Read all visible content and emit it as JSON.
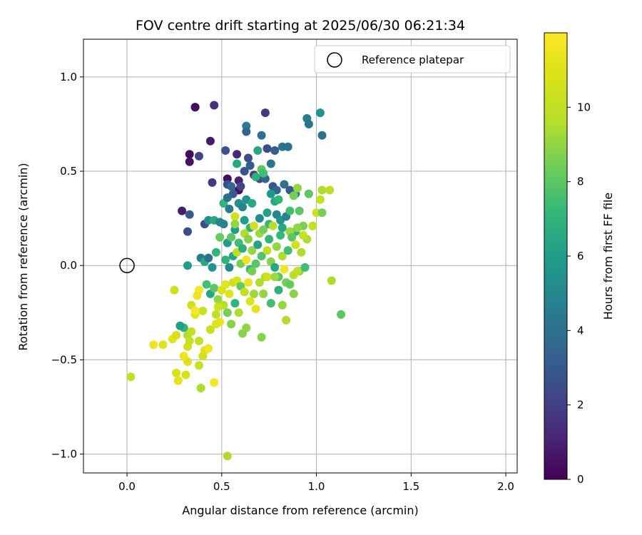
{
  "chart_data": {
    "type": "scatter",
    "title": "FOV centre drift starting at 2025/06/30 06:21:34",
    "xlabel": "Angular distance from reference (arcmin)",
    "ylabel": "Rotation from reference (arcmin)",
    "xlim": [
      -0.23,
      2.06
    ],
    "ylim": [
      -1.1,
      1.2
    ],
    "xticks": [
      0.0,
      0.5,
      1.0,
      1.5,
      2.0
    ],
    "xtick_labels": [
      "0.0",
      "0.5",
      "1.0",
      "1.5",
      "2.0"
    ],
    "yticks": [
      -1.0,
      -0.5,
      0.0,
      0.5,
      1.0
    ],
    "ytick_labels": [
      "−1.0",
      "−0.5",
      "0.0",
      "0.5",
      "1.0"
    ],
    "grid": true,
    "legend": {
      "position": "top-right",
      "entries": [
        "Reference platepar"
      ]
    },
    "reference_point": {
      "x": 0.0,
      "y": 0.0,
      "marker": "open-circle"
    },
    "colorbar": {
      "label": "Hours from first FF file",
      "range": [
        0,
        12
      ],
      "ticks": [
        0,
        2,
        4,
        6,
        8,
        10
      ],
      "colormap": "viridis"
    },
    "points": [
      [
        0.36,
        0.84,
        0.1
      ],
      [
        0.36,
        0.84,
        0.3
      ],
      [
        0.46,
        0.85,
        1.5
      ],
      [
        0.73,
        0.81,
        1.8
      ],
      [
        0.33,
        0.59,
        0.3
      ],
      [
        0.33,
        0.55,
        0.5
      ],
      [
        0.44,
        0.66,
        0.8
      ],
      [
        0.38,
        0.58,
        2.2
      ],
      [
        0.29,
        0.29,
        0.8
      ],
      [
        0.32,
        0.18,
        2.5
      ],
      [
        0.33,
        0.27,
        3.0
      ],
      [
        0.45,
        0.44,
        1.8
      ],
      [
        0.53,
        0.46,
        0.3
      ],
      [
        0.59,
        0.45,
        1.0
      ],
      [
        0.59,
        0.4,
        0.5
      ],
      [
        0.52,
        0.61,
        2.8
      ],
      [
        0.58,
        0.59,
        1.2
      ],
      [
        0.64,
        0.57,
        2.5
      ],
      [
        0.63,
        0.74,
        4.5
      ],
      [
        0.63,
        0.71,
        3.5
      ],
      [
        0.71,
        0.69,
        4.0
      ],
      [
        0.74,
        0.62,
        2.5
      ],
      [
        0.78,
        0.61,
        3.2
      ],
      [
        0.82,
        0.63,
        4.2
      ],
      [
        0.85,
        0.63,
        4.0
      ],
      [
        0.95,
        0.78,
        4.5
      ],
      [
        0.96,
        0.75,
        4.2
      ],
      [
        1.02,
        0.81,
        5.5
      ],
      [
        1.03,
        0.69,
        4.0
      ],
      [
        0.53,
        0.43,
        2.5
      ],
      [
        0.56,
        0.38,
        3.0
      ],
      [
        0.6,
        0.42,
        2.2
      ],
      [
        0.62,
        0.5,
        2.8
      ],
      [
        0.65,
        0.53,
        3.2
      ],
      [
        0.67,
        0.48,
        1.8
      ],
      [
        0.7,
        0.46,
        2.5
      ],
      [
        0.73,
        0.46,
        3.5
      ],
      [
        0.76,
        0.54,
        4.2
      ],
      [
        0.77,
        0.42,
        2.8
      ],
      [
        0.79,
        0.4,
        3.5
      ],
      [
        0.83,
        0.43,
        4.0
      ],
      [
        0.86,
        0.4,
        3.0
      ],
      [
        0.89,
        0.38,
        5.0
      ],
      [
        0.41,
        0.22,
        2.5
      ],
      [
        0.43,
        0.24,
        5.5
      ],
      [
        0.46,
        0.24,
        6.5
      ],
      [
        0.49,
        0.23,
        5.0
      ],
      [
        0.51,
        0.33,
        7.0
      ],
      [
        0.53,
        0.36,
        4.0
      ],
      [
        0.54,
        0.3,
        4.5
      ],
      [
        0.55,
        0.42,
        3.5
      ],
      [
        0.57,
        0.19,
        6.0
      ],
      [
        0.58,
        0.54,
        6.5
      ],
      [
        0.59,
        0.33,
        5.5
      ],
      [
        0.61,
        0.31,
        4.8
      ],
      [
        0.62,
        0.24,
        6.0
      ],
      [
        0.63,
        0.35,
        5.5
      ],
      [
        0.65,
        0.2,
        7.0
      ],
      [
        0.66,
        0.33,
        6.5
      ],
      [
        0.68,
        0.47,
        6.8
      ],
      [
        0.69,
        0.61,
        6.5
      ],
      [
        0.7,
        0.25,
        5.2
      ],
      [
        0.71,
        0.51,
        8.0
      ],
      [
        0.72,
        0.49,
        7.5
      ],
      [
        0.74,
        0.28,
        6.2
      ],
      [
        0.75,
        0.22,
        7.2
      ],
      [
        0.76,
        0.38,
        5.8
      ],
      [
        0.78,
        0.34,
        6.5
      ],
      [
        0.79,
        0.27,
        5.0
      ],
      [
        0.8,
        0.35,
        7.0
      ],
      [
        0.81,
        0.24,
        5.5
      ],
      [
        0.82,
        0.2,
        6.5
      ],
      [
        0.84,
        0.26,
        4.8
      ],
      [
        0.86,
        0.29,
        7.5
      ],
      [
        0.88,
        0.37,
        8.5
      ],
      [
        0.89,
        0.18,
        7.2
      ],
      [
        0.9,
        0.41,
        9.0
      ],
      [
        0.91,
        0.29,
        8.0
      ],
      [
        0.93,
        0.21,
        8.5
      ],
      [
        0.95,
        0.14,
        9.5
      ],
      [
        0.96,
        0.38,
        8.0
      ],
      [
        0.98,
        0.21,
        10.0
      ],
      [
        1.0,
        0.28,
        10.5
      ],
      [
        1.02,
        0.35,
        10.2
      ],
      [
        1.03,
        0.28,
        8.5
      ],
      [
        1.03,
        0.4,
        9.5
      ],
      [
        1.07,
        0.4,
        9.8
      ],
      [
        1.08,
        -0.08,
        9.5
      ],
      [
        1.13,
        -0.26,
        8.0
      ],
      [
        0.39,
        0.04,
        4.5
      ],
      [
        0.41,
        0.02,
        6.5
      ],
      [
        0.43,
        0.04,
        4.0
      ],
      [
        0.45,
        -0.01,
        5.5
      ],
      [
        0.47,
        0.07,
        7.0
      ],
      [
        0.49,
        0.15,
        8.2
      ],
      [
        0.51,
        0.22,
        5.0
      ],
      [
        0.52,
        0.03,
        7.0
      ],
      [
        0.53,
        0.12,
        6.0
      ],
      [
        0.54,
        -0.01,
        5.0
      ],
      [
        0.55,
        0.15,
        8.0
      ],
      [
        0.56,
        0.05,
        6.5
      ],
      [
        0.57,
        0.26,
        10.5
      ],
      [
        0.57,
        0.22,
        9.0
      ],
      [
        0.58,
        0.07,
        10.0
      ],
      [
        0.59,
        0.12,
        7.5
      ],
      [
        0.6,
        0.01,
        8.5
      ],
      [
        0.61,
        0.09,
        6.8
      ],
      [
        0.62,
        0.17,
        9.5
      ],
      [
        0.63,
        0.03,
        11.5
      ],
      [
        0.64,
        0.14,
        8.8
      ],
      [
        0.65,
        -0.02,
        7.2
      ],
      [
        0.66,
        0.08,
        9.0
      ],
      [
        0.67,
        0.21,
        10.5
      ],
      [
        0.68,
        0.01,
        8.0
      ],
      [
        0.69,
        0.11,
        6.2
      ],
      [
        0.7,
        0.17,
        9.2
      ],
      [
        0.71,
        0.05,
        7.8
      ],
      [
        0.72,
        0.19,
        8.5
      ],
      [
        0.73,
        -0.06,
        9.5
      ],
      [
        0.74,
        0.08,
        10.0
      ],
      [
        0.75,
        0.14,
        7.0
      ],
      [
        0.76,
        0.02,
        8.8
      ],
      [
        0.77,
        0.21,
        9.8
      ],
      [
        0.78,
        -0.01,
        6.5
      ],
      [
        0.79,
        0.1,
        9.0
      ],
      [
        0.8,
        -0.06,
        8.0
      ],
      [
        0.81,
        0.16,
        7.2
      ],
      [
        0.82,
        0.05,
        9.5
      ],
      [
        0.83,
        -0.02,
        11.5
      ],
      [
        0.84,
        -0.09,
        8.5
      ],
      [
        0.85,
        0.08,
        7.5
      ],
      [
        0.86,
        0.18,
        9.2
      ],
      [
        0.87,
        0.15,
        8.0
      ],
      [
        0.88,
        -0.05,
        9.8
      ],
      [
        0.89,
        0.11,
        10.5
      ],
      [
        0.9,
        0.2,
        9.0
      ],
      [
        0.91,
        -0.03,
        8.8
      ],
      [
        0.92,
        0.07,
        9.5
      ],
      [
        0.93,
        0.16,
        10.2
      ],
      [
        0.94,
        -0.01,
        7.5
      ],
      [
        0.32,
        0.0,
        6.0
      ],
      [
        0.3,
        -0.33,
        7.0
      ],
      [
        0.32,
        -0.37,
        9.5
      ],
      [
        0.34,
        -0.21,
        10.5
      ],
      [
        0.36,
        -0.26,
        11.0
      ],
      [
        0.38,
        -0.13,
        11.8
      ],
      [
        0.4,
        -0.24,
        10.2
      ],
      [
        0.42,
        -0.1,
        7.5
      ],
      [
        0.44,
        -0.15,
        6.5
      ],
      [
        0.46,
        -0.12,
        8.0
      ],
      [
        0.47,
        -0.26,
        10.0
      ],
      [
        0.48,
        -0.18,
        9.0
      ],
      [
        0.49,
        -0.3,
        11.5
      ],
      [
        0.5,
        -0.13,
        10.8
      ],
      [
        0.51,
        -0.21,
        9.8
      ],
      [
        0.52,
        -0.1,
        11.2
      ],
      [
        0.53,
        -0.25,
        8.5
      ],
      [
        0.54,
        -0.15,
        11.0
      ],
      [
        0.55,
        -0.31,
        8.8
      ],
      [
        0.56,
        -0.09,
        10.5
      ],
      [
        0.57,
        -0.2,
        7.0
      ],
      [
        0.58,
        -0.08,
        10.8
      ],
      [
        0.59,
        -0.25,
        9.5
      ],
      [
        0.6,
        -0.11,
        8.2
      ],
      [
        0.61,
        -0.36,
        8.8
      ],
      [
        0.62,
        -0.14,
        10.0
      ],
      [
        0.63,
        -0.33,
        9.0
      ],
      [
        0.64,
        -0.09,
        11.5
      ],
      [
        0.65,
        -0.19,
        11.0
      ],
      [
        0.66,
        -0.03,
        8.5
      ],
      [
        0.67,
        -0.15,
        9.2
      ],
      [
        0.68,
        -0.23,
        11.2
      ],
      [
        0.7,
        -0.09,
        9.5
      ],
      [
        0.71,
        -0.38,
        8.8
      ],
      [
        0.72,
        -0.15,
        9.0
      ],
      [
        0.74,
        -0.06,
        10.5
      ],
      [
        0.76,
        -0.2,
        7.5
      ],
      [
        0.78,
        -0.06,
        9.2
      ],
      [
        0.8,
        -0.13,
        6.8
      ],
      [
        0.82,
        -0.21,
        9.0
      ],
      [
        0.84,
        -0.29,
        9.5
      ],
      [
        0.86,
        -0.1,
        8.2
      ],
      [
        0.88,
        -0.15,
        8.8
      ],
      [
        0.9,
        -0.03,
        10.0
      ],
      [
        0.25,
        -0.13,
        10.5
      ],
      [
        0.24,
        -0.39,
        11.2
      ],
      [
        0.26,
        -0.37,
        10.8
      ],
      [
        0.28,
        -0.32,
        6.0
      ],
      [
        0.3,
        -0.48,
        11.5
      ],
      [
        0.31,
        -0.58,
        10.8
      ],
      [
        0.32,
        -0.51,
        11.0
      ],
      [
        0.32,
        -0.43,
        10.5
      ],
      [
        0.33,
        -0.4,
        10.2
      ],
      [
        0.34,
        -0.35,
        10.0
      ],
      [
        0.36,
        -0.24,
        11.8
      ],
      [
        0.37,
        -0.16,
        11.5
      ],
      [
        0.38,
        -0.53,
        10.2
      ],
      [
        0.38,
        -0.4,
        10.0
      ],
      [
        0.39,
        -0.65,
        9.5
      ],
      [
        0.4,
        -0.48,
        10.5
      ],
      [
        0.41,
        -0.45,
        11.0
      ],
      [
        0.43,
        -0.44,
        11.5
      ],
      [
        0.44,
        -0.34,
        10.2
      ],
      [
        0.46,
        -0.62,
        11.8
      ],
      [
        0.47,
        -0.31,
        11.0
      ],
      [
        0.48,
        -0.22,
        10.5
      ],
      [
        0.14,
        -0.42,
        11.5
      ],
      [
        0.19,
        -0.42,
        11.0
      ],
      [
        0.02,
        -0.59,
        10.0
      ],
      [
        0.26,
        -0.57,
        10.8
      ],
      [
        0.27,
        -0.61,
        11.2
      ],
      [
        0.53,
        -1.01,
        9.5
      ]
    ]
  }
}
